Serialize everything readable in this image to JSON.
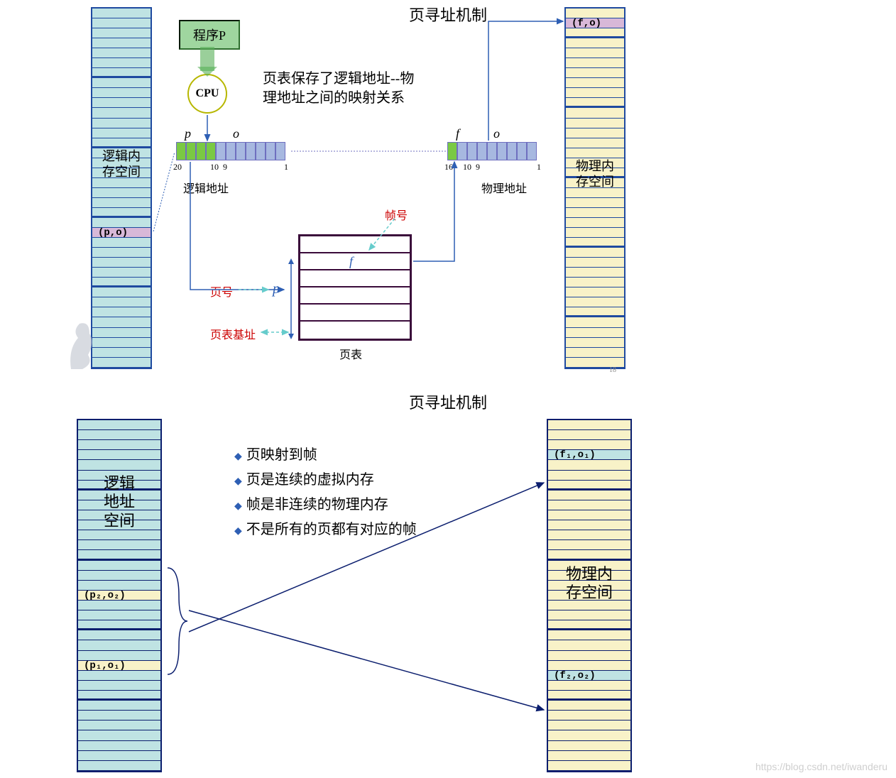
{
  "slide1": {
    "title": "页寻址机制",
    "desc_line1": "页表保存了逻辑地址--物",
    "desc_line2": "理地址之间的映射关系",
    "program_box": "程序P",
    "cpu_label": "CPU",
    "pagenum": "18",
    "left_mem": {
      "label": "逻辑内\n存空间",
      "fill": "#bfe3e3",
      "border": "#1f4aa0",
      "highlight_fill": "#d8b8d8",
      "highlight_label": "(p,o)",
      "highlight_row": 22,
      "rows": 36,
      "segments": [
        7,
        7,
        7,
        7,
        8
      ]
    },
    "right_mem": {
      "label": "物理内\n存空间",
      "fill": "#f8f2c8",
      "border": "#1f4aa0",
      "highlight_fill": "#d8b8d8",
      "highlight_label": "(f,o)",
      "highlight_row": 1,
      "rows": 36,
      "segments": [
        3,
        7,
        7,
        7,
        7,
        5
      ]
    },
    "logical_addr": {
      "p_label": "p",
      "o_label": "o",
      "p_color": "#7ac943",
      "o_color": "#a7b8e0",
      "p_cells": 4,
      "o_cells": 7,
      "ticks": {
        "left": "20",
        "mid_l": "10",
        "mid_r": "9",
        "right": "1"
      },
      "caption": "逻辑地址"
    },
    "phys_addr": {
      "f_label": "f",
      "o_label": "o",
      "f_colors": [
        "#7ac943",
        "#a7b8e0"
      ],
      "o_color": "#a7b8e0",
      "f_cells": 2,
      "o_cells": 7,
      "ticks": {
        "left": "16",
        "mid_l": "10",
        "mid_r": "9",
        "right": "1"
      },
      "caption": "物理地址"
    },
    "page_table": {
      "rows": 6,
      "f_label": "f",
      "caption": "页表",
      "frame_num_label": "帧号",
      "page_num_label": "页号",
      "p_label": "p",
      "base_label": "页表基址"
    },
    "colors": {
      "arrow": "#2e5fb4",
      "dashed": "#66cccc",
      "border_purple": "#3a0b3a",
      "progbox_bg": "#9fd69f",
      "progbox_border": "#2e6e2e",
      "red": "#cc0000"
    }
  },
  "slide2": {
    "title": "页寻址机制",
    "bullets": [
      "页映射到帧",
      "页是连续的虚拟内存",
      "帧是非连续的物理内存",
      "不是所有的页都有对应的帧"
    ],
    "left_mem": {
      "label": "逻辑\n地址\n空间",
      "fill": "#bfe3e3",
      "border": "#0b1e6e",
      "rows": 35,
      "segments": [
        7,
        7,
        7,
        7,
        7
      ],
      "highlight_fill": "#f8f2c8",
      "marks": [
        {
          "row": 17,
          "label": "(p₂,o₂)"
        },
        {
          "row": 24,
          "label": "(p₁,o₁)"
        }
      ]
    },
    "right_mem": {
      "label": "物理内\n存空间",
      "fill": "#f8f2c8",
      "border": "#0b1e6e",
      "rows": 35,
      "segments": [
        7,
        7,
        7,
        7,
        7
      ],
      "highlight_fill": "#bfe3e3",
      "marks": [
        {
          "row": 3,
          "label": "(f₁,o₁)"
        },
        {
          "row": 25,
          "label": "(f₂,o₂)"
        }
      ]
    },
    "colors": {
      "arrow": "#0b1e6e",
      "brace": "#0b1e6e"
    }
  },
  "watermark": "https://blog.csdn.net/iwanderu"
}
